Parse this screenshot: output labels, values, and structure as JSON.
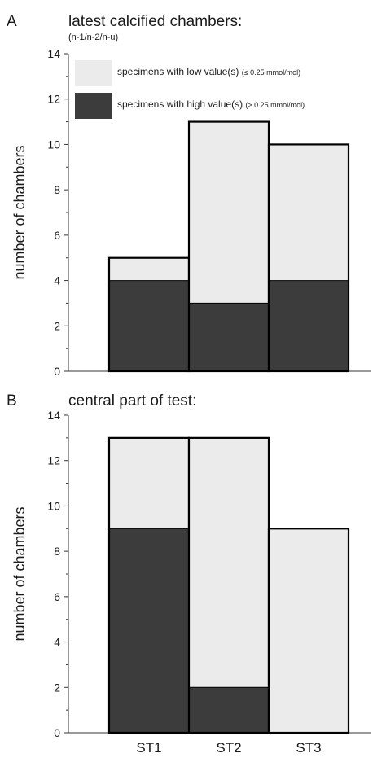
{
  "colors": {
    "low": "#ebebeb",
    "high": "#3c3c3c",
    "outline": "#000000",
    "axis": "#333333"
  },
  "chart_data": [
    {
      "type": "bar",
      "stacked": true,
      "panel": "A",
      "title": "latest calcified chambers:",
      "subtitle": "(n-1/n-2/n-u)",
      "ylabel": "number of chambers",
      "xlabel": "",
      "categories": [
        "ST1",
        "ST2",
        "ST3"
      ],
      "ylim": [
        0,
        14
      ],
      "yticks": [
        0,
        2,
        4,
        6,
        8,
        10,
        12,
        14
      ],
      "show_xtick_labels": false,
      "series": [
        {
          "name": "specimens with high value(s)",
          "qualifier": "(> 0.25 mmol/mol)",
          "color_key": "high",
          "values": [
            4,
            3,
            4
          ]
        },
        {
          "name": "specimens with low value(s)",
          "qualifier": "(≤ 0.25 mmol/mol)",
          "color_key": "low",
          "values": [
            1,
            8,
            6
          ]
        }
      ],
      "totals": [
        5,
        11,
        10
      ],
      "legend": {
        "position": "top-left inside"
      }
    },
    {
      "type": "bar",
      "stacked": true,
      "panel": "B",
      "title": "central part of test:",
      "subtitle": "",
      "ylabel": "number of chambers",
      "xlabel": "",
      "categories": [
        "ST1",
        "ST2",
        "ST3"
      ],
      "ylim": [
        0,
        14
      ],
      "yticks": [
        0,
        2,
        4,
        6,
        8,
        10,
        12,
        14
      ],
      "show_xtick_labels": true,
      "series": [
        {
          "name": "specimens with high value(s)",
          "color_key": "high",
          "values": [
            9,
            2,
            0
          ]
        },
        {
          "name": "specimens with low value(s)",
          "color_key": "low",
          "values": [
            4,
            11,
            9
          ]
        }
      ],
      "totals": [
        13,
        13,
        9
      ]
    }
  ]
}
